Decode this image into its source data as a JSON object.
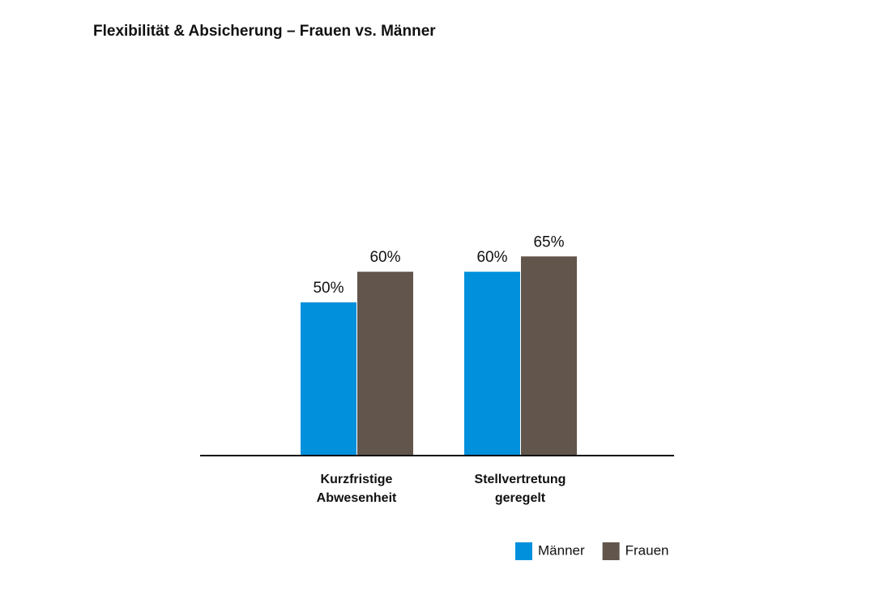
{
  "chart_data": {
    "type": "bar",
    "title": "Flexibilität & Absicherung – Frauen vs. Männer",
    "categories": [
      "Kurzfristige Abwesenheit",
      "Stellvertretung geregelt"
    ],
    "series": [
      {
        "name": "Männer",
        "color": "#0090dc",
        "values": [
          50,
          60
        ],
        "value_labels": [
          "50%",
          "60%"
        ]
      },
      {
        "name": "Frauen",
        "color": "#62554c",
        "values": [
          60,
          65
        ],
        "value_labels": [
          "60%",
          "65%"
        ]
      }
    ],
    "ylim": [
      0,
      100
    ]
  }
}
